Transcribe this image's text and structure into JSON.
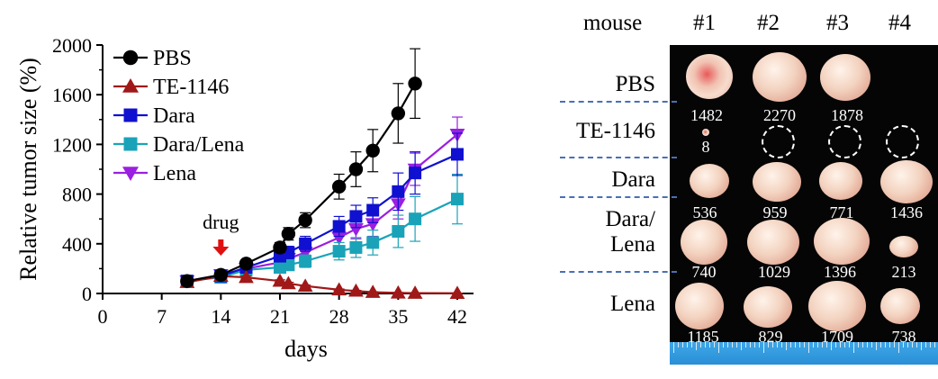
{
  "chart_data": {
    "type": "line",
    "ylabel": "Relative tumor size (%)",
    "xlabel": "days",
    "xlim": [
      0,
      42
    ],
    "ylim": [
      0,
      2000
    ],
    "xticks": [
      0,
      7,
      14,
      21,
      28,
      35,
      42
    ],
    "yticks": [
      0,
      400,
      800,
      1200,
      1600,
      2000
    ],
    "legend": "top-left",
    "annotation": "drug",
    "annotation_x": 14,
    "series": [
      {
        "name": "PBS",
        "color": "#000000",
        "marker": "circle",
        "x": [
          10,
          14,
          17,
          21,
          22,
          24,
          28,
          30,
          32,
          35,
          37
        ],
        "y": [
          100,
          150,
          240,
          370,
          480,
          590,
          860,
          1000,
          1150,
          1450,
          1690
        ],
        "err": [
          0,
          10,
          20,
          40,
          50,
          60,
          100,
          140,
          170,
          240,
          280
        ]
      },
      {
        "name": "TE-1146",
        "color": "#a01818",
        "marker": "triangle-up",
        "x": [
          10,
          14,
          17,
          21,
          22,
          24,
          28,
          30,
          32,
          35,
          37,
          42
        ],
        "y": [
          90,
          140,
          130,
          100,
          80,
          60,
          30,
          20,
          10,
          5,
          3,
          2
        ],
        "err": [
          0,
          10,
          10,
          10,
          10,
          8,
          6,
          5,
          4,
          3,
          2,
          1
        ]
      },
      {
        "name": "Dara",
        "color": "#1010d0",
        "marker": "square",
        "x": [
          10,
          14,
          17,
          21,
          22,
          24,
          28,
          30,
          32,
          35,
          37,
          42
        ],
        "y": [
          100,
          140,
          210,
          300,
          330,
          400,
          540,
          620,
          670,
          820,
          970,
          1120
        ],
        "err": [
          0,
          10,
          25,
          40,
          50,
          60,
          80,
          90,
          100,
          150,
          170,
          170
        ]
      },
      {
        "name": "Dara/Lena",
        "color": "#1aa3b8",
        "marker": "square",
        "x": [
          10,
          14,
          17,
          21,
          22,
          24,
          28,
          30,
          32,
          35,
          37,
          42
        ],
        "y": [
          100,
          130,
          190,
          210,
          230,
          260,
          340,
          370,
          410,
          500,
          600,
          760
        ],
        "err": [
          0,
          10,
          20,
          30,
          40,
          50,
          70,
          80,
          100,
          130,
          180,
          200
        ]
      },
      {
        "name": "Lena",
        "color": "#9b1fe0",
        "marker": "triangle-down",
        "x": [
          10,
          14,
          17,
          21,
          22,
          24,
          28,
          30,
          32,
          35,
          37,
          42
        ],
        "y": [
          100,
          150,
          200,
          250,
          280,
          330,
          450,
          520,
          560,
          720,
          1000,
          1280
        ],
        "err": [
          0,
          10,
          25,
          30,
          40,
          50,
          70,
          80,
          100,
          120,
          130,
          140
        ]
      }
    ]
  },
  "photo": {
    "mouse_label": "mouse",
    "columns": [
      "#1",
      "#2",
      "#3",
      "#4"
    ],
    "groups": [
      {
        "label": "PBS",
        "values": [
          "1482",
          "2270",
          "1878",
          ""
        ]
      },
      {
        "label": "TE-1146",
        "values": [
          "8",
          "",
          "",
          ""
        ]
      },
      {
        "label": "Dara",
        "values": [
          "536",
          "959",
          "771",
          "1436"
        ]
      },
      {
        "label_line1": "Dara/",
        "label_line2": "Lena",
        "values": [
          "740",
          "1029",
          "1396",
          "213"
        ]
      },
      {
        "label": "Lena",
        "values": [
          "1185",
          "829",
          "1709",
          "738"
        ]
      }
    ]
  }
}
